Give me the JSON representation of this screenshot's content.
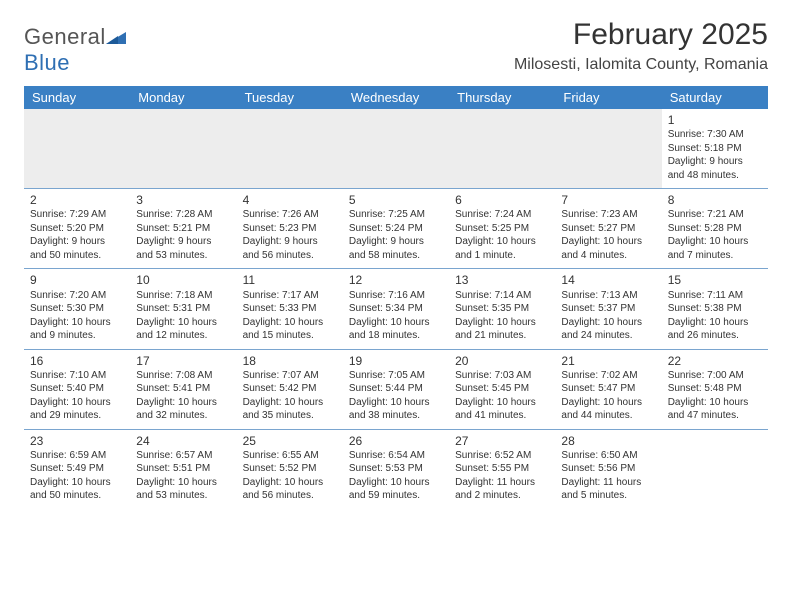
{
  "logo": {
    "general": "General",
    "blue": "Blue"
  },
  "title": "February 2025",
  "location": "Milosesti, Ialomita County, Romania",
  "dayHeaders": [
    "Sunday",
    "Monday",
    "Tuesday",
    "Wednesday",
    "Thursday",
    "Friday",
    "Saturday"
  ],
  "colors": {
    "header_bg": "#3a80c4",
    "header_text": "#ffffff",
    "row_border": "#7aa5cf",
    "empty_bg": "#ededed",
    "text": "#333333",
    "logo_gray": "#555555",
    "logo_blue": "#2f6fb3"
  },
  "weeks": [
    [
      null,
      null,
      null,
      null,
      null,
      null,
      {
        "n": "1",
        "sunrise": "Sunrise: 7:30 AM",
        "sunset": "Sunset: 5:18 PM",
        "day1": "Daylight: 9 hours",
        "day2": "and 48 minutes."
      }
    ],
    [
      {
        "n": "2",
        "sunrise": "Sunrise: 7:29 AM",
        "sunset": "Sunset: 5:20 PM",
        "day1": "Daylight: 9 hours",
        "day2": "and 50 minutes."
      },
      {
        "n": "3",
        "sunrise": "Sunrise: 7:28 AM",
        "sunset": "Sunset: 5:21 PM",
        "day1": "Daylight: 9 hours",
        "day2": "and 53 minutes."
      },
      {
        "n": "4",
        "sunrise": "Sunrise: 7:26 AM",
        "sunset": "Sunset: 5:23 PM",
        "day1": "Daylight: 9 hours",
        "day2": "and 56 minutes."
      },
      {
        "n": "5",
        "sunrise": "Sunrise: 7:25 AM",
        "sunset": "Sunset: 5:24 PM",
        "day1": "Daylight: 9 hours",
        "day2": "and 58 minutes."
      },
      {
        "n": "6",
        "sunrise": "Sunrise: 7:24 AM",
        "sunset": "Sunset: 5:25 PM",
        "day1": "Daylight: 10 hours",
        "day2": "and 1 minute."
      },
      {
        "n": "7",
        "sunrise": "Sunrise: 7:23 AM",
        "sunset": "Sunset: 5:27 PM",
        "day1": "Daylight: 10 hours",
        "day2": "and 4 minutes."
      },
      {
        "n": "8",
        "sunrise": "Sunrise: 7:21 AM",
        "sunset": "Sunset: 5:28 PM",
        "day1": "Daylight: 10 hours",
        "day2": "and 7 minutes."
      }
    ],
    [
      {
        "n": "9",
        "sunrise": "Sunrise: 7:20 AM",
        "sunset": "Sunset: 5:30 PM",
        "day1": "Daylight: 10 hours",
        "day2": "and 9 minutes."
      },
      {
        "n": "10",
        "sunrise": "Sunrise: 7:18 AM",
        "sunset": "Sunset: 5:31 PM",
        "day1": "Daylight: 10 hours",
        "day2": "and 12 minutes."
      },
      {
        "n": "11",
        "sunrise": "Sunrise: 7:17 AM",
        "sunset": "Sunset: 5:33 PM",
        "day1": "Daylight: 10 hours",
        "day2": "and 15 minutes."
      },
      {
        "n": "12",
        "sunrise": "Sunrise: 7:16 AM",
        "sunset": "Sunset: 5:34 PM",
        "day1": "Daylight: 10 hours",
        "day2": "and 18 minutes."
      },
      {
        "n": "13",
        "sunrise": "Sunrise: 7:14 AM",
        "sunset": "Sunset: 5:35 PM",
        "day1": "Daylight: 10 hours",
        "day2": "and 21 minutes."
      },
      {
        "n": "14",
        "sunrise": "Sunrise: 7:13 AM",
        "sunset": "Sunset: 5:37 PM",
        "day1": "Daylight: 10 hours",
        "day2": "and 24 minutes."
      },
      {
        "n": "15",
        "sunrise": "Sunrise: 7:11 AM",
        "sunset": "Sunset: 5:38 PM",
        "day1": "Daylight: 10 hours",
        "day2": "and 26 minutes."
      }
    ],
    [
      {
        "n": "16",
        "sunrise": "Sunrise: 7:10 AM",
        "sunset": "Sunset: 5:40 PM",
        "day1": "Daylight: 10 hours",
        "day2": "and 29 minutes."
      },
      {
        "n": "17",
        "sunrise": "Sunrise: 7:08 AM",
        "sunset": "Sunset: 5:41 PM",
        "day1": "Daylight: 10 hours",
        "day2": "and 32 minutes."
      },
      {
        "n": "18",
        "sunrise": "Sunrise: 7:07 AM",
        "sunset": "Sunset: 5:42 PM",
        "day1": "Daylight: 10 hours",
        "day2": "and 35 minutes."
      },
      {
        "n": "19",
        "sunrise": "Sunrise: 7:05 AM",
        "sunset": "Sunset: 5:44 PM",
        "day1": "Daylight: 10 hours",
        "day2": "and 38 minutes."
      },
      {
        "n": "20",
        "sunrise": "Sunrise: 7:03 AM",
        "sunset": "Sunset: 5:45 PM",
        "day1": "Daylight: 10 hours",
        "day2": "and 41 minutes."
      },
      {
        "n": "21",
        "sunrise": "Sunrise: 7:02 AM",
        "sunset": "Sunset: 5:47 PM",
        "day1": "Daylight: 10 hours",
        "day2": "and 44 minutes."
      },
      {
        "n": "22",
        "sunrise": "Sunrise: 7:00 AM",
        "sunset": "Sunset: 5:48 PM",
        "day1": "Daylight: 10 hours",
        "day2": "and 47 minutes."
      }
    ],
    [
      {
        "n": "23",
        "sunrise": "Sunrise: 6:59 AM",
        "sunset": "Sunset: 5:49 PM",
        "day1": "Daylight: 10 hours",
        "day2": "and 50 minutes."
      },
      {
        "n": "24",
        "sunrise": "Sunrise: 6:57 AM",
        "sunset": "Sunset: 5:51 PM",
        "day1": "Daylight: 10 hours",
        "day2": "and 53 minutes."
      },
      {
        "n": "25",
        "sunrise": "Sunrise: 6:55 AM",
        "sunset": "Sunset: 5:52 PM",
        "day1": "Daylight: 10 hours",
        "day2": "and 56 minutes."
      },
      {
        "n": "26",
        "sunrise": "Sunrise: 6:54 AM",
        "sunset": "Sunset: 5:53 PM",
        "day1": "Daylight: 10 hours",
        "day2": "and 59 minutes."
      },
      {
        "n": "27",
        "sunrise": "Sunrise: 6:52 AM",
        "sunset": "Sunset: 5:55 PM",
        "day1": "Daylight: 11 hours",
        "day2": "and 2 minutes."
      },
      {
        "n": "28",
        "sunrise": "Sunrise: 6:50 AM",
        "sunset": "Sunset: 5:56 PM",
        "day1": "Daylight: 11 hours",
        "day2": "and 5 minutes."
      },
      null
    ]
  ]
}
